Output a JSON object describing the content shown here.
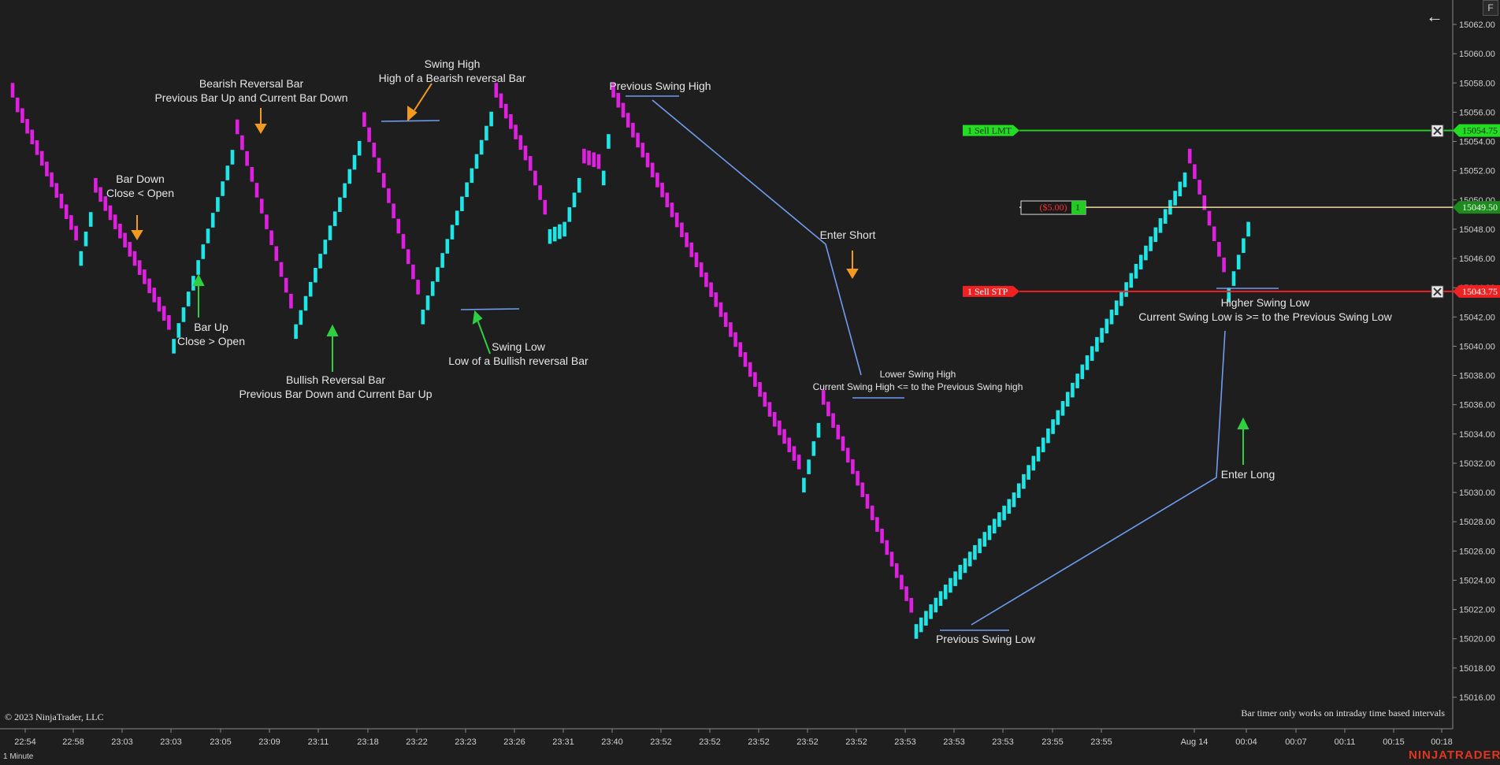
{
  "window": {
    "f_key": "F",
    "back_icon": "arrow-left-icon"
  },
  "chart_data": {
    "type": "candlestick",
    "interval": "1 Minute",
    "copyright": "© 2023 NinjaTrader, LLC",
    "bar_timer_note": "Bar timer only works on intraday time based intervals",
    "brand": "NINJATRADER",
    "y_axis": {
      "min": 15015,
      "max": 15063,
      "ticks": [
        15016,
        15018,
        15020,
        15022,
        15024,
        15026,
        15028,
        15030,
        15032,
        15034,
        15036,
        15038,
        15040,
        15042,
        15044,
        15046,
        15048,
        15050,
        15052,
        15054,
        15056,
        15058,
        15060,
        15062
      ]
    },
    "x_axis": {
      "ticks": [
        "22:54",
        "22:58",
        "23:03",
        "23:03",
        "23:05",
        "23:09",
        "23:11",
        "23:18",
        "23:22",
        "23:23",
        "23:26",
        "23:31",
        "23:40",
        "23:52",
        "23:52",
        "23:52",
        "23:52",
        "23:52",
        "23:53",
        "23:53",
        "23:53",
        "23:55",
        "23:55",
        "Aug 14",
        "00:04",
        "00:07",
        "00:11",
        "00:15",
        "00:18"
      ]
    },
    "colors": {
      "up": "#1ee6e6",
      "down": "#e020e0",
      "annotation_line": "#6f9cf0",
      "arrow_orange": "#f39a1e",
      "arrow_green": "#2fcf40",
      "limit": "#22cc22",
      "stop": "#ee2222",
      "position": "#f0d9a0"
    },
    "swing_path": [
      {
        "x": 0,
        "y": 15057.0
      },
      {
        "x": 1,
        "y": 15056.0
      },
      {
        "x": 14,
        "y": 15046.5
      },
      {
        "x": 17,
        "y": 15050.5
      },
      {
        "x": 33,
        "y": 15040.5
      },
      {
        "x": 46,
        "y": 15054.5
      },
      {
        "x": 58,
        "y": 15041.5
      },
      {
        "x": 72,
        "y": 15055.0
      },
      {
        "x": 84,
        "y": 15042.5
      },
      {
        "x": 99,
        "y": 15057.0
      },
      {
        "x": 106,
        "y": 15052.0
      },
      {
        "x": 110,
        "y": 15048.0
      },
      {
        "x": 113,
        "y": 15048.5
      },
      {
        "x": 117,
        "y": 15052.5
      },
      {
        "x": 121,
        "y": 15052.0
      },
      {
        "x": 123,
        "y": 15057.0
      },
      {
        "x": 156,
        "y": 15034.5
      },
      {
        "x": 162,
        "y": 15031.0
      },
      {
        "x": 166,
        "y": 15036.0
      },
      {
        "x": 185,
        "y": 15021.0
      },
      {
        "x": 205,
        "y": 15030.0
      },
      {
        "x": 241,
        "y": 15052.5
      },
      {
        "x": 249,
        "y": 15044.0
      },
      {
        "x": 253,
        "y": 15048.5
      }
    ],
    "orders": [
      {
        "label": "1  Sell LMT",
        "price": 15054.75,
        "price_label": "15054.75"
      },
      {
        "label": "1  Sell STP",
        "price": 15043.75,
        "price_label": "15043.75"
      }
    ],
    "position": {
      "pnl": "($5.00)",
      "qty": "1",
      "price": 15049.5,
      "price_label": "15049.50"
    },
    "annotations": {
      "bearish_reversal_title": "Bearish Reversal Bar",
      "bearish_reversal_desc": "Previous Bar Up and Current Bar Down",
      "swing_high_title": "Swing High",
      "swing_high_desc": "High of a Bearish reversal Bar",
      "previous_swing_high": "Previous Swing High",
      "bar_down_title": "Bar Down",
      "bar_down_desc": "Close < Open",
      "bar_up_title": "Bar Up",
      "bar_up_desc": "Close > Open",
      "bullish_reversal_title": "Bullish Reversal Bar",
      "bullish_reversal_desc": "Previous Bar Down and Current Bar Up",
      "swing_low_title": "Swing Low",
      "swing_low_desc": "Low of a Bullish reversal Bar",
      "enter_short": "Enter Short",
      "lower_swing_high_title": "Lower Swing High",
      "lower_swing_high_desc": "Current Swing High <= to the Previous Swing high",
      "previous_swing_low": "Previous Swing Low",
      "higher_swing_low_title": "Higher Swing Low",
      "higher_swing_low_desc": "Current Swing Low is >= to the Previous Swing Low",
      "enter_long": "Enter Long"
    }
  }
}
